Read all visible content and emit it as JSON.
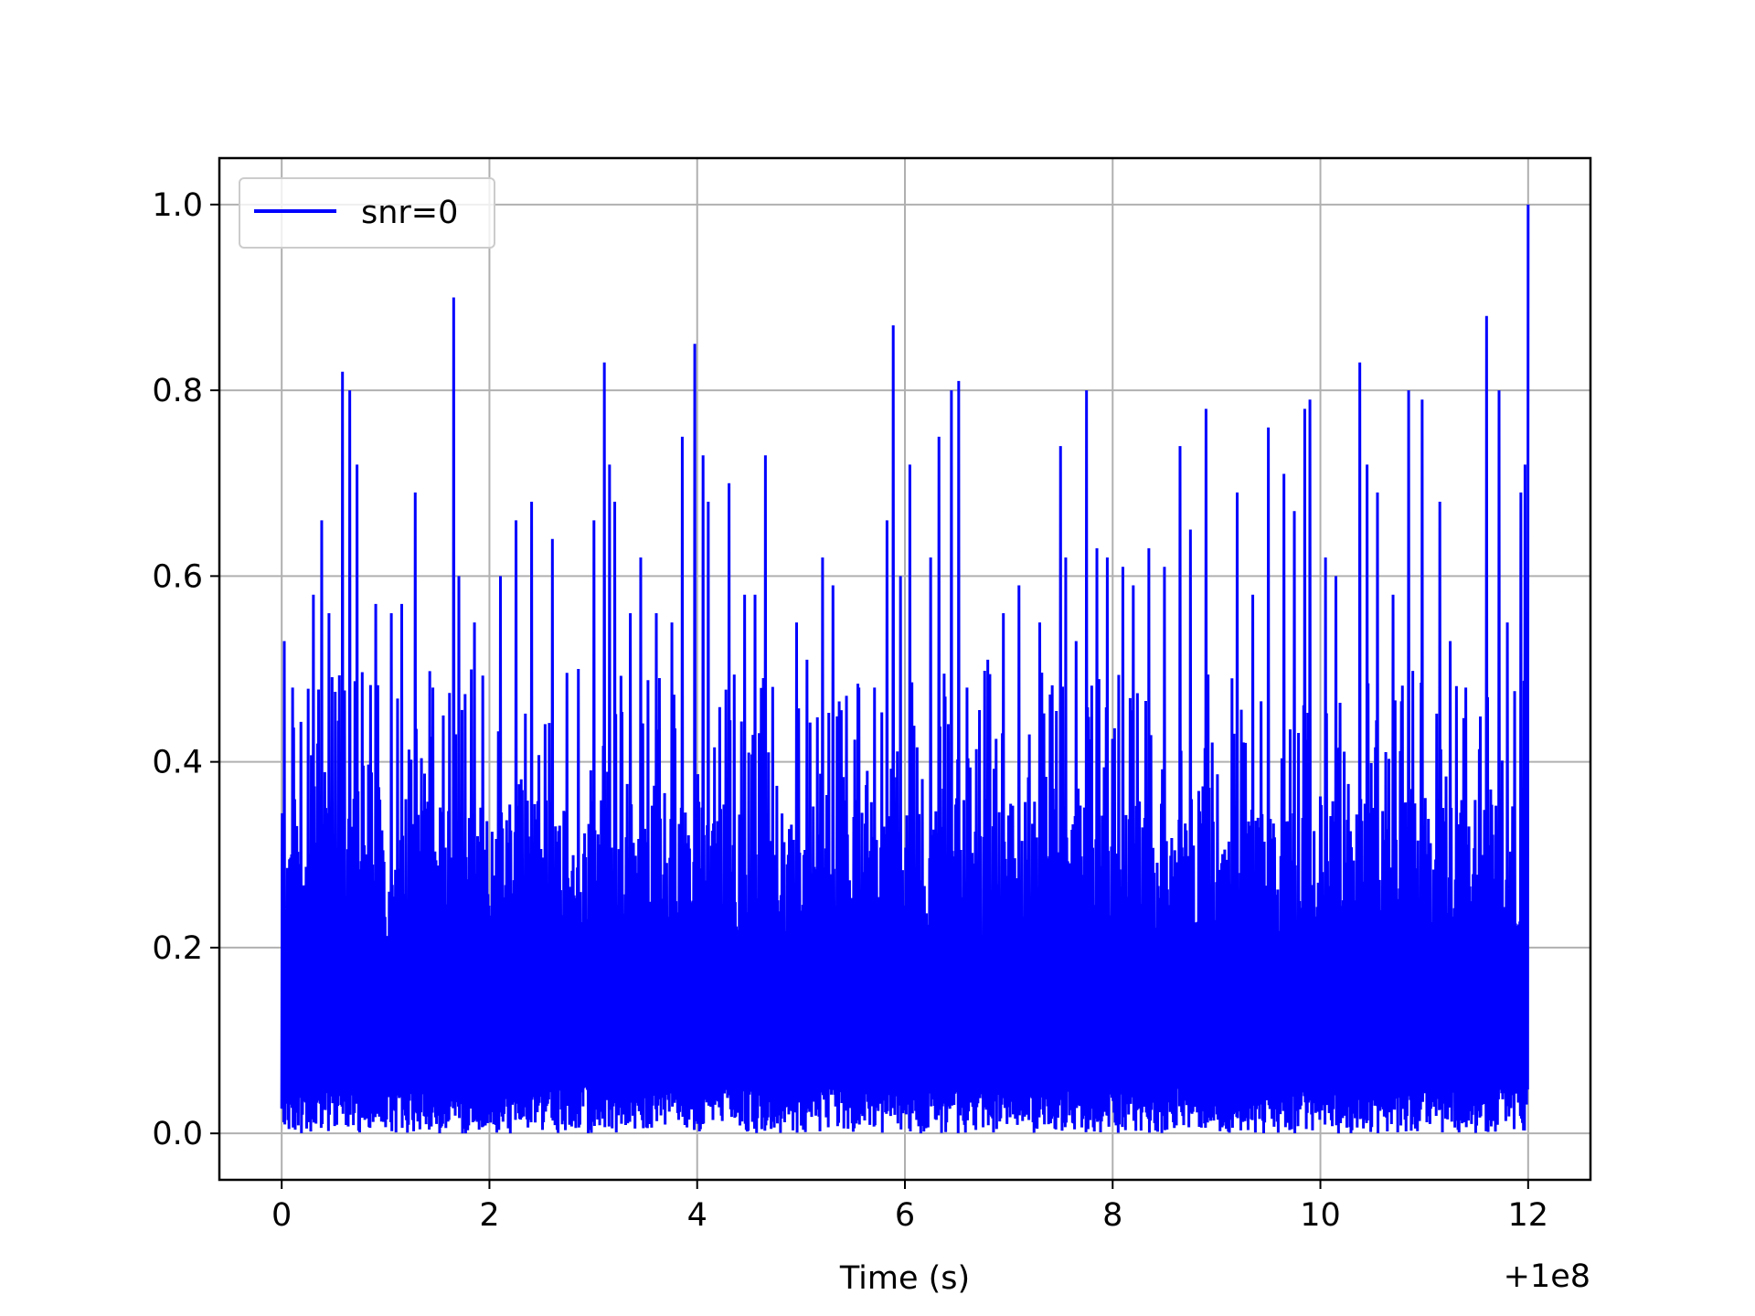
{
  "chart_data": {
    "type": "line",
    "title": "",
    "xlabel": "Time (s)",
    "ylabel": "",
    "x_offset_label": "+1e8",
    "x_offset": 100000000,
    "xlim": [
      -0.6,
      12.6
    ],
    "ylim": [
      -0.05,
      1.05
    ],
    "x_ticks": [
      0,
      2,
      4,
      6,
      8,
      10,
      12
    ],
    "x_tick_labels": [
      "0",
      "2",
      "4",
      "6",
      "8",
      "10",
      "12"
    ],
    "y_ticks": [
      0.0,
      0.2,
      0.4,
      0.6,
      0.8,
      1.0
    ],
    "y_tick_labels": [
      "0.0",
      "0.2",
      "0.4",
      "0.6",
      "0.8",
      "1.0"
    ],
    "grid": true,
    "legend_position": "top-left",
    "series": [
      {
        "name": "snr=0",
        "color": "#0000ff",
        "x_range": [
          0,
          12
        ],
        "sample_count": 2400,
        "baseline_max": 0.36,
        "peaks": [
          {
            "x": 0.02,
            "y": 0.53
          },
          {
            "x": 0.1,
            "y": 0.48
          },
          {
            "x": 0.3,
            "y": 0.58
          },
          {
            "x": 0.38,
            "y": 0.66
          },
          {
            "x": 0.45,
            "y": 0.56
          },
          {
            "x": 0.58,
            "y": 0.82
          },
          {
            "x": 0.65,
            "y": 0.8
          },
          {
            "x": 0.72,
            "y": 0.72
          },
          {
            "x": 0.9,
            "y": 0.57
          },
          {
            "x": 1.05,
            "y": 0.56
          },
          {
            "x": 1.15,
            "y": 0.57
          },
          {
            "x": 1.28,
            "y": 0.69
          },
          {
            "x": 1.45,
            "y": 0.48
          },
          {
            "x": 1.55,
            "y": 0.45
          },
          {
            "x": 1.65,
            "y": 0.9
          },
          {
            "x": 1.7,
            "y": 0.6
          },
          {
            "x": 1.85,
            "y": 0.55
          },
          {
            "x": 2.1,
            "y": 0.6
          },
          {
            "x": 2.25,
            "y": 0.66
          },
          {
            "x": 2.4,
            "y": 0.68
          },
          {
            "x": 2.6,
            "y": 0.64
          },
          {
            "x": 2.85,
            "y": 0.5
          },
          {
            "x": 3.0,
            "y": 0.66
          },
          {
            "x": 3.1,
            "y": 0.83
          },
          {
            "x": 3.15,
            "y": 0.72
          },
          {
            "x": 3.2,
            "y": 0.68
          },
          {
            "x": 3.35,
            "y": 0.56
          },
          {
            "x": 3.45,
            "y": 0.62
          },
          {
            "x": 3.6,
            "y": 0.56
          },
          {
            "x": 3.75,
            "y": 0.55
          },
          {
            "x": 3.85,
            "y": 0.75
          },
          {
            "x": 3.97,
            "y": 0.85
          },
          {
            "x": 4.05,
            "y": 0.73
          },
          {
            "x": 4.1,
            "y": 0.68
          },
          {
            "x": 4.3,
            "y": 0.7
          },
          {
            "x": 4.45,
            "y": 0.58
          },
          {
            "x": 4.55,
            "y": 0.58
          },
          {
            "x": 4.65,
            "y": 0.73
          },
          {
            "x": 4.95,
            "y": 0.55
          },
          {
            "x": 5.05,
            "y": 0.51
          },
          {
            "x": 5.2,
            "y": 0.62
          },
          {
            "x": 5.3,
            "y": 0.59
          },
          {
            "x": 5.55,
            "y": 0.48
          },
          {
            "x": 5.7,
            "y": 0.48
          },
          {
            "x": 5.82,
            "y": 0.66
          },
          {
            "x": 5.88,
            "y": 0.87
          },
          {
            "x": 5.95,
            "y": 0.6
          },
          {
            "x": 6.05,
            "y": 0.72
          },
          {
            "x": 6.25,
            "y": 0.62
          },
          {
            "x": 6.33,
            "y": 0.75
          },
          {
            "x": 6.45,
            "y": 0.8
          },
          {
            "x": 6.52,
            "y": 0.81
          },
          {
            "x": 6.6,
            "y": 0.48
          },
          {
            "x": 6.8,
            "y": 0.51
          },
          {
            "x": 6.95,
            "y": 0.56
          },
          {
            "x": 7.1,
            "y": 0.59
          },
          {
            "x": 7.3,
            "y": 0.55
          },
          {
            "x": 7.5,
            "y": 0.74
          },
          {
            "x": 7.55,
            "y": 0.62
          },
          {
            "x": 7.65,
            "y": 0.53
          },
          {
            "x": 7.75,
            "y": 0.8
          },
          {
            "x": 7.85,
            "y": 0.63
          },
          {
            "x": 7.95,
            "y": 0.62
          },
          {
            "x": 8.1,
            "y": 0.61
          },
          {
            "x": 8.2,
            "y": 0.59
          },
          {
            "x": 8.35,
            "y": 0.63
          },
          {
            "x": 8.5,
            "y": 0.61
          },
          {
            "x": 8.65,
            "y": 0.74
          },
          {
            "x": 8.75,
            "y": 0.65
          },
          {
            "x": 8.9,
            "y": 0.78
          },
          {
            "x": 9.2,
            "y": 0.69
          },
          {
            "x": 9.35,
            "y": 0.58
          },
          {
            "x": 9.5,
            "y": 0.76
          },
          {
            "x": 9.65,
            "y": 0.71
          },
          {
            "x": 9.75,
            "y": 0.67
          },
          {
            "x": 9.85,
            "y": 0.78
          },
          {
            "x": 9.9,
            "y": 0.79
          },
          {
            "x": 10.05,
            "y": 0.62
          },
          {
            "x": 10.15,
            "y": 0.6
          },
          {
            "x": 10.38,
            "y": 0.83
          },
          {
            "x": 10.45,
            "y": 0.72
          },
          {
            "x": 10.55,
            "y": 0.69
          },
          {
            "x": 10.7,
            "y": 0.58
          },
          {
            "x": 10.85,
            "y": 0.8
          },
          {
            "x": 10.98,
            "y": 0.79
          },
          {
            "x": 11.15,
            "y": 0.68
          },
          {
            "x": 11.25,
            "y": 0.53
          },
          {
            "x": 11.4,
            "y": 0.48
          },
          {
            "x": 11.6,
            "y": 0.88
          },
          {
            "x": 11.72,
            "y": 0.8
          },
          {
            "x": 11.8,
            "y": 0.55
          },
          {
            "x": 11.93,
            "y": 0.69
          },
          {
            "x": 11.97,
            "y": 0.72
          },
          {
            "x": 12.0,
            "y": 1.0
          }
        ]
      }
    ]
  }
}
